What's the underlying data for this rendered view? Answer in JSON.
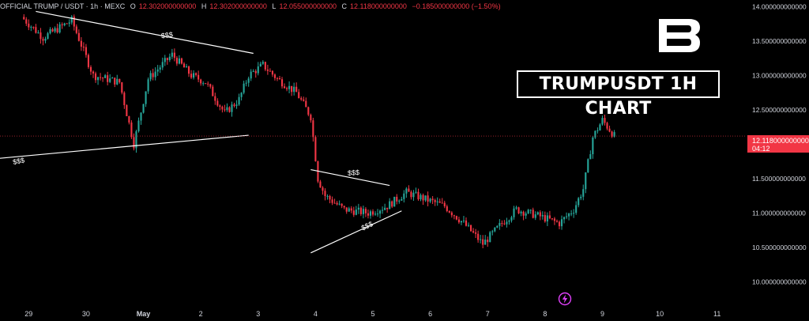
{
  "header": {
    "symbol": "OFFICIAL TRUMP / USDT · 1h · MEXC",
    "o_label": "O",
    "o_value": "12.302000000000",
    "h_label": "H",
    "h_value": "12.302000000000",
    "l_label": "L",
    "l_value": "12.055000000000",
    "c_label": "C",
    "c_value": "12.118000000000",
    "change": "−0.185000000000 (−1.50%)"
  },
  "title_box": "TRUMPUSDT 1H CHART",
  "logo_icon": "b-logo-icon",
  "bolt_icon": "lightning-icon",
  "price_badge": {
    "price": "12.118000000000",
    "countdown": "04:12"
  },
  "annotations": [
    "$$$",
    "$$$",
    "$$$",
    "$$$",
    "$$$"
  ],
  "colors": {
    "up": "#26a69a",
    "down": "#f23645",
    "background": "#000000",
    "text": "#d1d4dc"
  },
  "chart_data": {
    "type": "candlestick",
    "y_axis_labels": [
      "14.000000000000",
      "13.500000000000",
      "13.000000000000",
      "12.500000000000",
      "12.000000000000",
      "11.500000000000",
      "11.000000000000",
      "10.500000000000",
      "10.000000000000"
    ],
    "y_ticks": [
      14.0,
      13.5,
      13.0,
      12.5,
      12.0,
      11.5,
      11.0,
      10.5,
      10.0
    ],
    "ylim": [
      9.82,
      14.05
    ],
    "x_tick_labels": [
      "29",
      "30",
      "May",
      "2",
      "3",
      "4",
      "5",
      "6",
      "7",
      "8",
      "9",
      "10",
      "11"
    ],
    "x_tick_dates": [
      "Apr 29",
      "Apr 30",
      "May 1",
      "May 2",
      "May 3",
      "May 4",
      "May 5",
      "May 6",
      "May 7",
      "May 8",
      "May 9",
      "May 10",
      "May 11"
    ],
    "xlim": [
      "Apr 28 12:00",
      "May 11 12:00"
    ],
    "last_price": 12.118,
    "price_path": [
      [
        "Apr 28 21:00",
        13.85
      ],
      [
        "Apr 29 06:00",
        13.55
      ],
      [
        "Apr 29 18:00",
        13.8
      ],
      [
        "Apr 30 03:00",
        13.0
      ],
      [
        "Apr 30 14:00",
        12.9
      ],
      [
        "Apr 30 20:00",
        12.0
      ],
      [
        "May 1 02:00",
        12.95
      ],
      [
        "May 1 12:00",
        13.3
      ],
      [
        "May 1 20:00",
        13.0
      ],
      [
        "May 2 02:00",
        12.9
      ],
      [
        "May 2 10:00",
        12.45
      ],
      [
        "May 2 16:00",
        12.65
      ],
      [
        "May 2 20:00",
        13.0
      ],
      [
        "May 3 02:00",
        13.15
      ],
      [
        "May 3 08:00",
        12.95
      ],
      [
        "May 3 16:00",
        12.75
      ],
      [
        "May 3 22:00",
        12.4
      ],
      [
        "May 4 01:00",
        11.5
      ],
      [
        "May 4 04:00",
        11.25
      ],
      [
        "May 4 12:00",
        11.05
      ],
      [
        "May 4 22:00",
        11.0
      ],
      [
        "May 5 06:00",
        11.1
      ],
      [
        "May 5 14:00",
        11.3
      ],
      [
        "May 5 22:00",
        11.2
      ],
      [
        "May 6 06:00",
        11.1
      ],
      [
        "May 6 14:00",
        10.85
      ],
      [
        "May 6 22:00",
        10.55
      ],
      [
        "May 7 06:00",
        10.85
      ],
      [
        "May 7 12:00",
        11.05
      ],
      [
        "May 7 22:00",
        10.95
      ],
      [
        "May 8 06:00",
        10.85
      ],
      [
        "May 8 12:00",
        11.05
      ],
      [
        "May 8 16:00",
        11.35
      ],
      [
        "May 8 20:00",
        12.1
      ],
      [
        "May 9 00:00",
        12.35
      ],
      [
        "May 9 05:00",
        12.12
      ]
    ]
  }
}
